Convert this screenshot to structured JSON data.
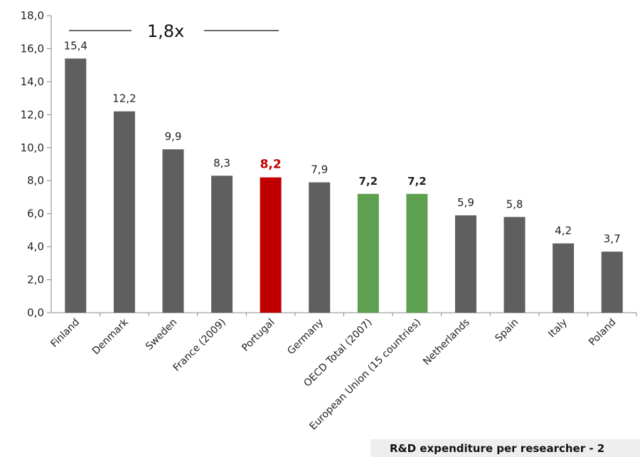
{
  "chart_data": {
    "type": "bar",
    "categories": [
      "Finland",
      "Denmark",
      "Sweden",
      "France (2009)",
      "Portugal",
      "Germany",
      "OECD Total (2007)",
      "European Union (15 countries)",
      "Netherlands",
      "Spain",
      "Italy",
      "Poland"
    ],
    "values": [
      15.4,
      12.2,
      9.9,
      8.3,
      8.2,
      7.9,
      7.2,
      7.2,
      5.9,
      5.8,
      4.2,
      3.7
    ],
    "value_labels": [
      "15,4",
      "12,2",
      "9,9",
      "8,3",
      "8,2",
      "7,9",
      "7,2",
      "7,2",
      "5,9",
      "5,8",
      "4,2",
      "3,7"
    ],
    "bar_colors": [
      "#5f5f5f",
      "#5f5f5f",
      "#5f5f5f",
      "#5f5f5f",
      "#c00000",
      "#5f5f5f",
      "#5da04f",
      "#5da04f",
      "#5f5f5f",
      "#5f5f5f",
      "#5f5f5f",
      "#5f5f5f"
    ],
    "label_colors": [
      "#222222",
      "#222222",
      "#222222",
      "#222222",
      "#c00000",
      "#222222",
      "#222222",
      "#222222",
      "#222222",
      "#222222",
      "#222222",
      "#222222"
    ],
    "bold_labels": [
      false,
      false,
      false,
      false,
      true,
      false,
      true,
      true,
      false,
      false,
      false,
      false
    ],
    "ylim": [
      0,
      18
    ],
    "yticks": [
      0,
      2,
      4,
      6,
      8,
      10,
      12,
      14,
      16,
      18
    ],
    "ytick_labels": [
      "0,0",
      "2,0",
      "4,0",
      "6,0",
      "8,0",
      "10,0",
      "12,0",
      "14,0",
      "16,0",
      "18,0"
    ],
    "annotation": "1,8x",
    "grid": false,
    "xlabel": "",
    "ylabel": ""
  },
  "footer": {
    "text": "R&D expenditure per researcher - 2"
  }
}
